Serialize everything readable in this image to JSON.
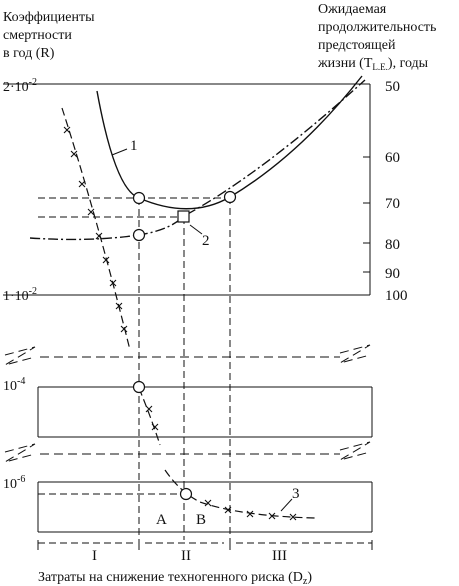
{
  "chart_data": {
    "type": "line",
    "y_label_left": [
      "Коэффициенты",
      "смертности",
      "в год (R)"
    ],
    "y_label_right": [
      "Ожидаемая",
      "продолжительность",
      "предстоящей",
      "жизни (T",
      "L.E.",
      "), годы"
    ],
    "x_label_main": "Затраты на снижение техногенного риска (D",
    "x_label_sub": "z",
    "x_label_close": ")",
    "left_ticks": [
      {
        "base": "2·10",
        "exp": "-2"
      },
      {
        "base": "1·10",
        "exp": "-2"
      },
      {
        "base": "10",
        "exp": "-4"
      },
      {
        "base": "10",
        "exp": "-6"
      }
    ],
    "right_ticks": [
      "50",
      "60",
      "70",
      "80",
      "90",
      "100"
    ],
    "zone_labels": [
      "I",
      "II",
      "III"
    ],
    "point_labels": [
      "A",
      "B"
    ],
    "curve_labels": [
      "1",
      "2",
      "3"
    ],
    "series": [
      {
        "name": "1",
        "style": "solid"
      },
      {
        "name": "2",
        "style": "dash-dot"
      },
      {
        "name": "3",
        "style": "dashed with cross markers"
      }
    ]
  }
}
